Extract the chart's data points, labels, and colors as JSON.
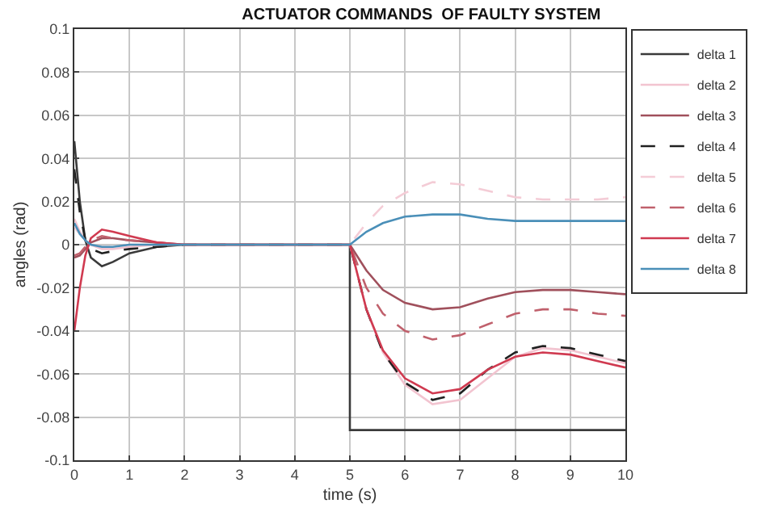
{
  "chart_data": {
    "type": "line",
    "title": "ACTUATOR COMMANDS  OF FAULTY SYSTEM",
    "xlabel": "time (s)",
    "ylabel": "angles (rad)",
    "x": [
      0,
      0.1,
      0.2,
      0.3,
      0.5,
      0.7,
      1,
      1.5,
      2,
      5,
      5.3,
      5.6,
      6,
      6.5,
      7,
      7.5,
      8,
      8.5,
      9,
      9.5,
      10
    ],
    "series": [
      {
        "name": "delta 1",
        "color": "#3a3a3a",
        "line_style": "solid",
        "x": [
          0,
          0.1,
          0.2,
          0.3,
          0.5,
          0.7,
          1,
          1.5,
          2,
          5,
          5,
          10
        ],
        "values": [
          0.048,
          0.02,
          0.002,
          -0.006,
          -0.01,
          -0.008,
          -0.004,
          -0.001,
          0,
          0,
          -0.086,
          -0.086
        ]
      },
      {
        "name": "delta 2",
        "color": "#f2c4d0",
        "line_style": "solid",
        "values": [
          0.012,
          0.006,
          0.002,
          0,
          -0.002,
          -0.002,
          -0.001,
          0,
          0,
          0,
          -0.03,
          -0.05,
          -0.065,
          -0.074,
          -0.072,
          -0.062,
          -0.052,
          -0.048,
          -0.049,
          -0.052,
          -0.055
        ]
      },
      {
        "name": "delta 3",
        "color": "#a0505c",
        "line_style": "solid",
        "values": [
          -0.006,
          -0.005,
          -0.002,
          0.001,
          0.003,
          0.003,
          0.002,
          0.001,
          0,
          0,
          -0.012,
          -0.021,
          -0.027,
          -0.03,
          -0.029,
          -0.025,
          -0.022,
          -0.021,
          -0.021,
          -0.022,
          -0.023
        ]
      },
      {
        "name": "delta 4",
        "color": "#202020",
        "line_style": "dashed",
        "values": [
          0.035,
          0.015,
          0.002,
          -0.002,
          -0.004,
          -0.003,
          -0.002,
          -0.001,
          0,
          0,
          -0.03,
          -0.05,
          -0.064,
          -0.072,
          -0.069,
          -0.058,
          -0.05,
          -0.047,
          -0.048,
          -0.051,
          -0.054
        ]
      },
      {
        "name": "delta 5",
        "color": "#f4ccd6",
        "line_style": "dashed",
        "values": [
          0.008,
          0.005,
          0.002,
          0,
          -0.001,
          -0.001,
          0,
          0,
          0,
          0,
          0.01,
          0.018,
          0.024,
          0.029,
          0.028,
          0.025,
          0.022,
          0.021,
          0.021,
          0.021,
          0.022
        ]
      },
      {
        "name": "delta 6",
        "color": "#c0606c",
        "line_style": "dashed",
        "values": [
          -0.005,
          -0.004,
          -0.001,
          0.002,
          0.004,
          0.003,
          0.002,
          0.001,
          0,
          0,
          -0.02,
          -0.032,
          -0.04,
          -0.044,
          -0.042,
          -0.037,
          -0.032,
          -0.03,
          -0.03,
          -0.032,
          -0.033
        ]
      },
      {
        "name": "delta 7",
        "color": "#d03a50",
        "line_style": "solid",
        "values": [
          -0.04,
          -0.02,
          -0.005,
          0.003,
          0.007,
          0.006,
          0.004,
          0.001,
          0,
          0,
          -0.03,
          -0.049,
          -0.062,
          -0.069,
          -0.067,
          -0.058,
          -0.052,
          -0.05,
          -0.051,
          -0.054,
          -0.057
        ]
      },
      {
        "name": "delta 8",
        "color": "#4a8fb8",
        "line_style": "solid",
        "values": [
          0.01,
          0.005,
          0.002,
          0,
          -0.001,
          -0.001,
          0,
          0,
          0,
          0,
          0.006,
          0.01,
          0.013,
          0.014,
          0.014,
          0.012,
          0.011,
          0.011,
          0.011,
          0.011,
          0.011
        ]
      }
    ],
    "xlim": [
      0,
      10
    ],
    "xticks": [
      0,
      1,
      2,
      3,
      4,
      5,
      6,
      7,
      8,
      9,
      10
    ],
    "ylim": [
      -0.1,
      0.1
    ],
    "yticks": [
      -0.1,
      -0.08,
      -0.06,
      -0.04,
      -0.02,
      0,
      0.02,
      0.04,
      0.06,
      0.08,
      0.1
    ],
    "grid": true,
    "legend": "right",
    "marker": "none"
  }
}
